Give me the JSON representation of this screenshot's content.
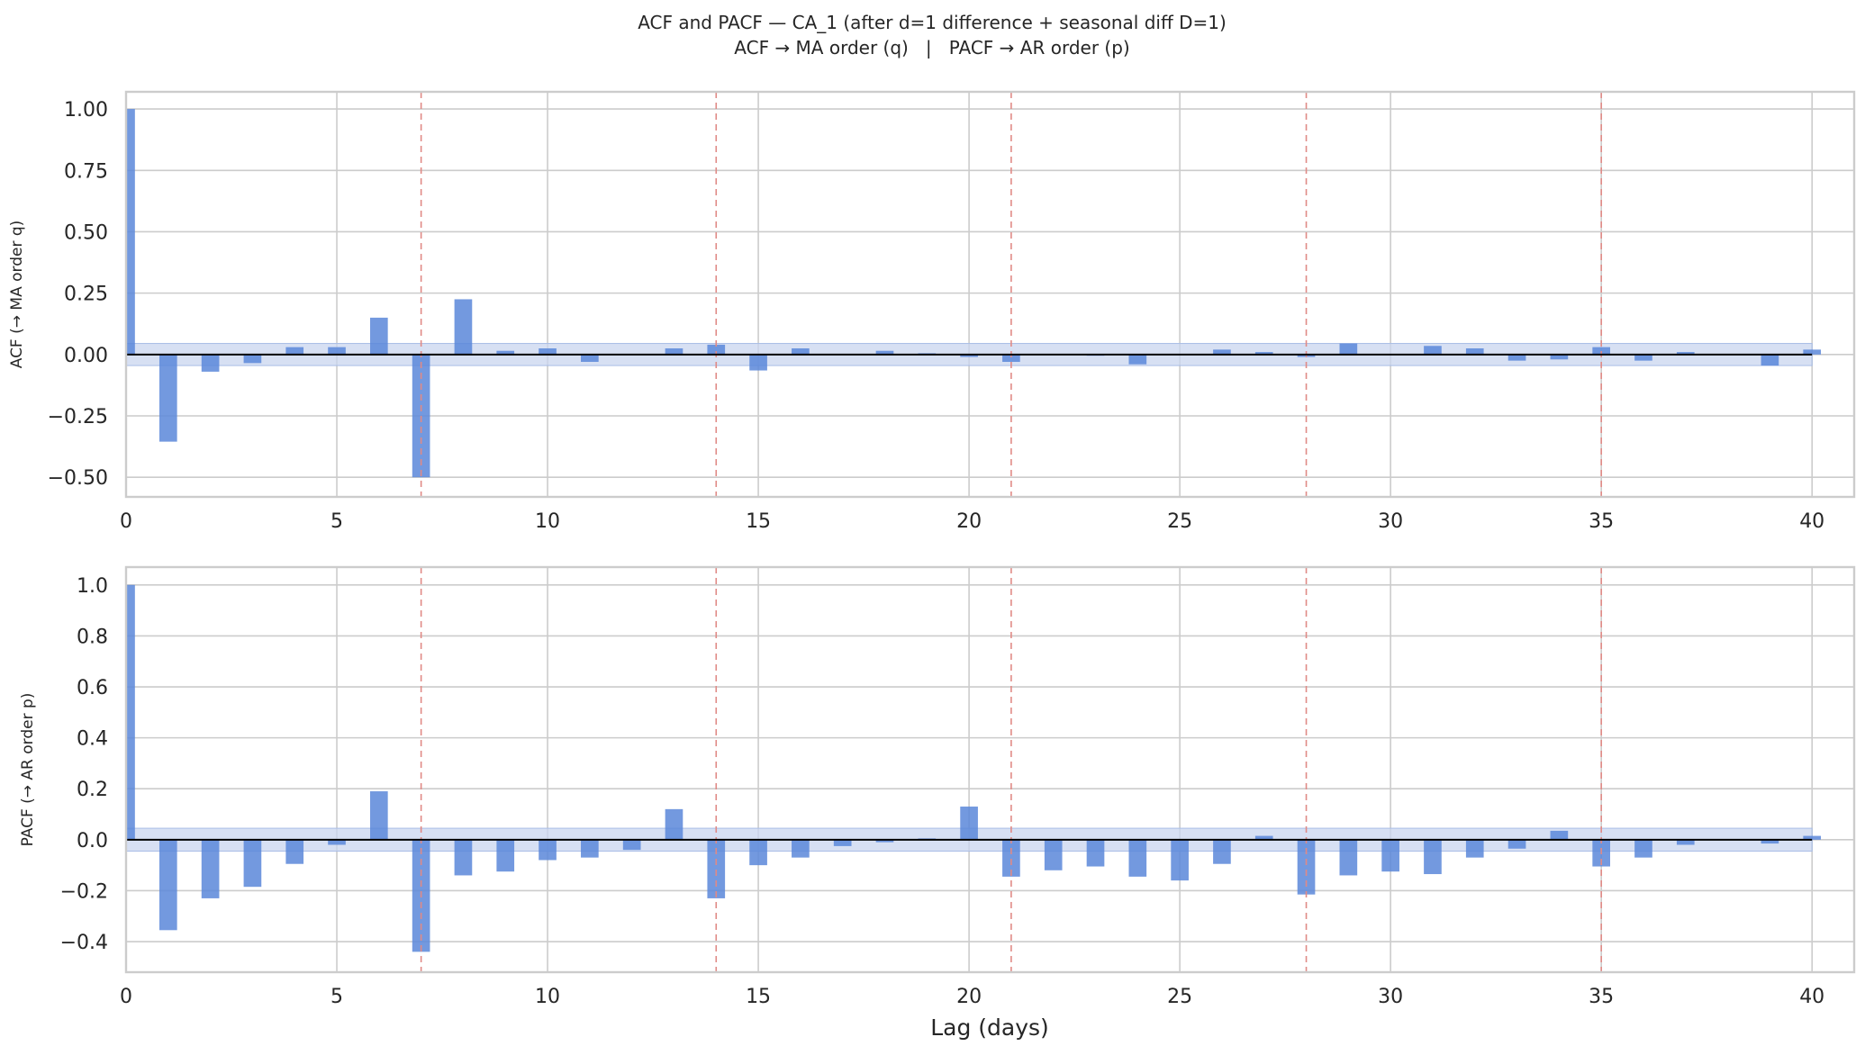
{
  "figure": {
    "title_line1": "ACF and PACF — CA_1 (after d=1 difference + seasonal diff D=1)",
    "title_line2": "ACF → MA order (q)   |   PACF → AR order (p)",
    "xlabel": "Lag (days)"
  },
  "colors": {
    "bar": "#5b87d9",
    "confidence_band": "#c9d6ef",
    "zero_line": "#000000",
    "seasonal_line": "#e08a86",
    "grid": "#cccccc",
    "axes_frame": "#cccccc"
  },
  "chart_data": [
    {
      "type": "bar",
      "name": "ACF",
      "ylabel": "ACF  (→ MA order q)",
      "xlim": [
        0,
        41
      ],
      "ylim": [
        -0.58,
        1.07
      ],
      "xticks": [
        0,
        5,
        10,
        15,
        20,
        25,
        30,
        35,
        40
      ],
      "xtick_labels": [
        "0",
        "5",
        "10",
        "15",
        "20",
        "25",
        "30",
        "35",
        "40"
      ],
      "yticks": [
        -0.5,
        -0.25,
        0.0,
        0.25,
        0.5,
        0.75,
        1.0
      ],
      "ytick_labels": [
        "−0.50",
        "−0.25",
        "0.00",
        "0.25",
        "0.50",
        "0.75",
        "1.00"
      ],
      "confidence_band": 0.045,
      "seasonal_lags": [
        7,
        14,
        21,
        28,
        35
      ],
      "grid": true,
      "x": [
        0,
        1,
        2,
        3,
        4,
        5,
        6,
        7,
        8,
        9,
        10,
        11,
        12,
        13,
        14,
        15,
        16,
        17,
        18,
        19,
        20,
        21,
        22,
        23,
        24,
        25,
        26,
        27,
        28,
        29,
        30,
        31,
        32,
        33,
        34,
        35,
        36,
        37,
        38,
        39,
        40
      ],
      "values": [
        1.0,
        -0.355,
        -0.07,
        -0.035,
        0.03,
        0.03,
        0.15,
        -0.5,
        0.225,
        0.015,
        0.025,
        -0.03,
        0.0,
        0.025,
        0.04,
        -0.065,
        0.025,
        0.0,
        0.015,
        0.005,
        -0.01,
        -0.03,
        0.0,
        -0.005,
        -0.04,
        0.0,
        0.02,
        0.01,
        -0.01,
        0.045,
        0.0,
        0.035,
        0.025,
        -0.025,
        -0.02,
        0.03,
        -0.025,
        0.01,
        0.0,
        -0.045,
        0.02
      ]
    },
    {
      "type": "bar",
      "name": "PACF",
      "ylabel": "PACF (→ AR order p)",
      "xlim": [
        0,
        41
      ],
      "ylim": [
        -0.52,
        1.07
      ],
      "xticks": [
        0,
        5,
        10,
        15,
        20,
        25,
        30,
        35,
        40
      ],
      "xtick_labels": [
        "0",
        "5",
        "10",
        "15",
        "20",
        "25",
        "30",
        "35",
        "40"
      ],
      "yticks": [
        -0.4,
        -0.2,
        0.0,
        0.2,
        0.4,
        0.6,
        0.8,
        1.0
      ],
      "ytick_labels": [
        "−0.4",
        "−0.2",
        "0.0",
        "0.2",
        "0.4",
        "0.6",
        "0.8",
        "1.0"
      ],
      "confidence_band": 0.045,
      "seasonal_lags": [
        7,
        14,
        21,
        28,
        35
      ],
      "grid": true,
      "x": [
        0,
        1,
        2,
        3,
        4,
        5,
        6,
        7,
        8,
        9,
        10,
        11,
        12,
        13,
        14,
        15,
        16,
        17,
        18,
        19,
        20,
        21,
        22,
        23,
        24,
        25,
        26,
        27,
        28,
        29,
        30,
        31,
        32,
        33,
        34,
        35,
        36,
        37,
        38,
        39,
        40
      ],
      "values": [
        1.0,
        -0.355,
        -0.23,
        -0.185,
        -0.095,
        -0.02,
        0.19,
        -0.44,
        -0.14,
        -0.125,
        -0.08,
        -0.07,
        -0.04,
        0.12,
        -0.23,
        -0.1,
        -0.07,
        -0.025,
        -0.01,
        0.005,
        0.13,
        -0.145,
        -0.12,
        -0.105,
        -0.145,
        -0.16,
        -0.095,
        0.015,
        -0.215,
        -0.14,
        -0.125,
        -0.135,
        -0.07,
        -0.035,
        0.035,
        -0.105,
        -0.07,
        -0.02,
        0.0,
        -0.015,
        0.015
      ]
    }
  ]
}
